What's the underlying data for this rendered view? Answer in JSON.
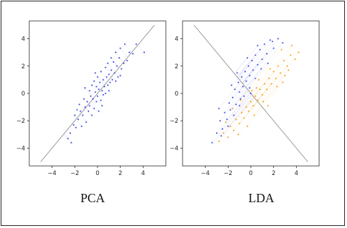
{
  "figure": {
    "colors": {
      "blue": "#4a57e0",
      "orange": "#f5a623",
      "projection_line": "#999999",
      "axes": "#222222"
    }
  },
  "chart_data": [
    {
      "type": "scatter",
      "caption": "PCA",
      "xlim": [
        -6,
        6
      ],
      "ylim": [
        -5.3,
        5.3
      ],
      "xticks": [
        -4,
        -2,
        0,
        2,
        4
      ],
      "yticks": [
        -4,
        -2,
        0,
        2,
        4
      ],
      "xtick_labels": [
        "−4",
        "−2",
        "0",
        "2",
        "4"
      ],
      "ytick_labels": [
        "−4",
        "−2",
        "0",
        "2",
        "4"
      ],
      "projection_line": {
        "from": [
          -5,
          -5
        ],
        "to": [
          5,
          5
        ]
      },
      "series": [
        {
          "color": "#4a57e0",
          "points": [
            [
              -2.6,
              -3.3
            ],
            [
              -2.3,
              -3.6
            ],
            [
              -2.1,
              -2.3
            ],
            [
              -1.9,
              -2.5
            ],
            [
              -2.0,
              -1.6
            ],
            [
              -1.7,
              -1.9
            ],
            [
              -1.5,
              -1.3
            ],
            [
              -1.6,
              -0.8
            ],
            [
              -1.3,
              -1.6
            ],
            [
              -1.2,
              -0.4
            ],
            [
              -1.1,
              -1.0
            ],
            [
              -1.0,
              -2.1
            ],
            [
              -0.9,
              -0.6
            ],
            [
              -0.8,
              -1.3
            ],
            [
              -0.7,
              0.2
            ],
            [
              -0.7,
              -0.9
            ],
            [
              -0.6,
              -0.2
            ],
            [
              -0.5,
              -1.6
            ],
            [
              -0.5,
              0.6
            ],
            [
              -0.4,
              -0.4
            ],
            [
              -0.3,
              0.9
            ],
            [
              -0.3,
              -1.1
            ],
            [
              -0.2,
              0.1
            ],
            [
              -0.1,
              -0.6
            ],
            [
              -0.1,
              0.5
            ],
            [
              0.0,
              -0.2
            ],
            [
              0.0,
              1.2
            ],
            [
              0.1,
              0.3
            ],
            [
              0.1,
              -1.3
            ],
            [
              0.2,
              0.8
            ],
            [
              0.3,
              -0.5
            ],
            [
              0.3,
              1.6
            ],
            [
              0.4,
              0.2
            ],
            [
              0.5,
              1.0
            ],
            [
              0.5,
              -0.1
            ],
            [
              0.6,
              0.5
            ],
            [
              0.7,
              1.9
            ],
            [
              0.7,
              0.0
            ],
            [
              0.8,
              1.2
            ],
            [
              0.9,
              0.6
            ],
            [
              0.9,
              2.2
            ],
            [
              1.0,
              1.4
            ],
            [
              1.1,
              0.8
            ],
            [
              1.2,
              2.6
            ],
            [
              1.2,
              1.7
            ],
            [
              1.3,
              1.0
            ],
            [
              1.4,
              2.3
            ],
            [
              1.5,
              1.5
            ],
            [
              1.6,
              3.0
            ],
            [
              1.7,
              2.0
            ],
            [
              1.8,
              1.2
            ],
            [
              1.9,
              2.6
            ],
            [
              2.0,
              3.3
            ],
            [
              2.1,
              1.8
            ],
            [
              2.3,
              2.2
            ],
            [
              2.4,
              3.6
            ],
            [
              2.6,
              2.4
            ],
            [
              2.8,
              3.0
            ],
            [
              3.1,
              2.9
            ],
            [
              3.4,
              3.6
            ],
            [
              4.1,
              3.0
            ],
            [
              -2.4,
              -2.9
            ],
            [
              -1.8,
              -1.2
            ],
            [
              -1.4,
              -2.4
            ],
            [
              -0.2,
              1.5
            ],
            [
              0.4,
              -0.9
            ],
            [
              1.0,
              0.2
            ],
            [
              1.6,
              0.9
            ],
            [
              -1.1,
              0.4
            ],
            [
              2.0,
              1.3
            ]
          ]
        }
      ]
    },
    {
      "type": "scatter",
      "caption": "LDA",
      "xlim": [
        -6,
        6
      ],
      "ylim": [
        -5.3,
        5.3
      ],
      "xticks": [
        -4,
        -2,
        0,
        2,
        4
      ],
      "yticks": [
        -4,
        -2,
        0,
        2,
        4
      ],
      "xtick_labels": [
        "−4",
        "−2",
        "0",
        "2",
        "4"
      ],
      "ytick_labels": [
        "−4",
        "−2",
        "0",
        "2",
        "4"
      ],
      "projection_line": {
        "from": [
          -5,
          5
        ],
        "to": [
          5,
          -5
        ]
      },
      "series": [
        {
          "color": "#4a57e0",
          "points": [
            [
              -3.4,
              -3.6
            ],
            [
              -3.0,
              -2.9
            ],
            [
              -2.7,
              -2.0
            ],
            [
              -2.5,
              -2.6
            ],
            [
              -2.3,
              -1.4
            ],
            [
              -2.1,
              -1.9
            ],
            [
              -1.9,
              -0.7
            ],
            [
              -1.8,
              -1.2
            ],
            [
              -1.6,
              -0.3
            ],
            [
              -1.4,
              0.3
            ],
            [
              -1.3,
              -0.8
            ],
            [
              -1.1,
              0.8
            ],
            [
              -1.0,
              0.1
            ],
            [
              -0.8,
              1.2
            ],
            [
              -0.7,
              0.5
            ],
            [
              -0.5,
              1.6
            ],
            [
              -0.4,
              0.9
            ],
            [
              -0.2,
              2.0
            ],
            [
              -0.1,
              1.3
            ],
            [
              0.1,
              2.4
            ],
            [
              0.2,
              1.7
            ],
            [
              0.4,
              2.8
            ],
            [
              0.6,
              2.1
            ],
            [
              0.8,
              3.2
            ],
            [
              1.0,
              2.5
            ],
            [
              1.2,
              3.6
            ],
            [
              1.4,
              2.9
            ],
            [
              1.7,
              3.9
            ],
            [
              2.0,
              3.3
            ],
            [
              2.4,
              4.0
            ],
            [
              2.8,
              3.7
            ],
            [
              -2.6,
              -3.1
            ],
            [
              -2.0,
              -2.4
            ],
            [
              -1.5,
              -1.6
            ],
            [
              -1.0,
              -0.9
            ],
            [
              -0.6,
              -0.2
            ],
            [
              -0.1,
              0.4
            ],
            [
              0.4,
              1.1
            ],
            [
              0.9,
              1.8
            ],
            [
              1.5,
              2.2
            ],
            [
              -1.2,
              1.5
            ],
            [
              -0.3,
              2.6
            ],
            [
              0.6,
              3.5
            ],
            [
              -2.8,
              -1.1
            ],
            [
              -1.7,
              0.6
            ],
            [
              0.0,
              0.0
            ],
            [
              -0.9,
              -0.4
            ],
            [
              1.9,
              3.8
            ]
          ]
        },
        {
          "color": "#f5a623",
          "points": [
            [
              -2.8,
              -3.5
            ],
            [
              -2.4,
              -2.9
            ],
            [
              -2.0,
              -3.2
            ],
            [
              -1.8,
              -2.4
            ],
            [
              -1.5,
              -2.7
            ],
            [
              -1.3,
              -1.9
            ],
            [
              -1.0,
              -2.2
            ],
            [
              -0.8,
              -1.4
            ],
            [
              -0.6,
              -1.8
            ],
            [
              -0.4,
              -1.0
            ],
            [
              -0.2,
              -1.3
            ],
            [
              0.0,
              -0.6
            ],
            [
              0.2,
              -0.9
            ],
            [
              0.4,
              -0.2
            ],
            [
              0.6,
              -0.5
            ],
            [
              0.8,
              0.3
            ],
            [
              1.0,
              -0.1
            ],
            [
              1.2,
              0.7
            ],
            [
              1.4,
              0.3
            ],
            [
              1.6,
              1.1
            ],
            [
              1.8,
              0.7
            ],
            [
              2.0,
              1.6
            ],
            [
              2.2,
              1.1
            ],
            [
              2.4,
              2.0
            ],
            [
              2.6,
              1.5
            ],
            [
              2.9,
              2.4
            ],
            [
              3.2,
              2.0
            ],
            [
              3.5,
              2.8
            ],
            [
              3.9,
              2.5
            ],
            [
              4.2,
              3.0
            ],
            [
              -2.2,
              -2.1
            ],
            [
              -1.1,
              -3.0
            ],
            [
              0.3,
              -1.6
            ],
            [
              1.1,
              -0.6
            ],
            [
              2.3,
              0.5
            ],
            [
              3.0,
              1.3
            ],
            [
              0.7,
              1.0
            ],
            [
              1.7,
              1.8
            ],
            [
              -0.9,
              -0.5
            ],
            [
              0.1,
              0.2
            ],
            [
              2.7,
              3.2
            ],
            [
              3.6,
              3.5
            ],
            [
              -0.3,
              -2.4
            ],
            [
              1.5,
              -0.9
            ],
            [
              2.8,
              0.8
            ],
            [
              0.5,
              0.4
            ],
            [
              -1.6,
              -1.1
            ],
            [
              3.3,
              1.7
            ]
          ]
        }
      ]
    }
  ]
}
